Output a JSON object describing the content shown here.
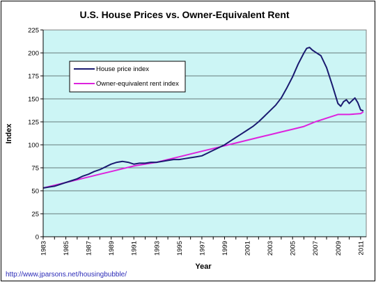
{
  "chart_data": {
    "type": "line",
    "title": "U.S. House Prices vs. Owner-Equivalent Rent",
    "xlabel": "Year",
    "ylabel": "Index",
    "xlim": [
      1983,
      2011.5
    ],
    "ylim": [
      0,
      225
    ],
    "yticks": [
      0,
      25,
      50,
      75,
      100,
      125,
      150,
      175,
      200,
      225
    ],
    "xticks": [
      1983,
      1985,
      1987,
      1989,
      1991,
      1993,
      1995,
      1997,
      1999,
      2001,
      2003,
      2005,
      2007,
      2009,
      2011
    ],
    "xtick_labels": [
      "1983",
      "1985",
      "1987",
      "1989",
      "1991",
      "1993",
      "1995",
      "1997",
      "1999",
      "2001",
      "2003",
      "2005",
      "2007",
      "2009",
      "2011"
    ],
    "ytick_labels": [
      "0",
      "25",
      "50",
      "75",
      "100",
      "125",
      "150",
      "175",
      "200",
      "225"
    ],
    "grid": true,
    "legend_position": "top-left",
    "background": "#ccf5f5",
    "series": [
      {
        "name": "House price index",
        "color": "#1a1a70",
        "x": [
          1983,
          1983.5,
          1984,
          1984.5,
          1985,
          1985.5,
          1986,
          1986.5,
          1987,
          1987.5,
          1988,
          1988.5,
          1989,
          1989.5,
          1990,
          1990.5,
          1991,
          1991.5,
          1992,
          1992.5,
          1993,
          1993.5,
          1994,
          1994.5,
          1995,
          1995.5,
          1996,
          1996.5,
          1997,
          1997.5,
          1998,
          1998.5,
          1999,
          1999.5,
          2000,
          2000.5,
          2001,
          2001.5,
          2002,
          2002.5,
          2003,
          2003.5,
          2004,
          2004.5,
          2005,
          2005.5,
          2006,
          2006.25,
          2006.5,
          2006.75,
          2007,
          2007.5,
          2008,
          2008.5,
          2009,
          2009.25,
          2009.5,
          2009.75,
          2010,
          2010.25,
          2010.5,
          2010.75,
          2011,
          2011.25
        ],
        "values": [
          53,
          54,
          55,
          57,
          59,
          61,
          63,
          66,
          68,
          71,
          73,
          76,
          79,
          81,
          82,
          81,
          79,
          80,
          80,
          81,
          81,
          82,
          83,
          84,
          84,
          85,
          86,
          87,
          88,
          91,
          94,
          97,
          100,
          104,
          108,
          112,
          116,
          120,
          125,
          131,
          137,
          143,
          151,
          162,
          174,
          188,
          200,
          205,
          206,
          203,
          201,
          197,
          184,
          165,
          145,
          142,
          147,
          149,
          145,
          148,
          151,
          146,
          138,
          137
        ]
      },
      {
        "name": "Owner-equivalent rent index",
        "color": "#dd22dd",
        "x": [
          1983,
          1984,
          1985,
          1986,
          1987,
          1988,
          1989,
          1990,
          1991,
          1992,
          1993,
          1994,
          1995,
          1996,
          1997,
          1998,
          1999,
          2000,
          2001,
          2002,
          2003,
          2004,
          2005,
          2006,
          2007,
          2008,
          2009,
          2010,
          2011,
          2011.25
        ],
        "values": [
          53,
          56,
          59,
          62,
          65,
          68,
          71,
          74,
          77,
          79,
          81,
          84,
          87,
          90,
          93,
          96,
          99,
          102,
          105,
          108,
          111,
          114,
          117,
          120,
          125,
          129,
          133,
          133,
          134,
          136
        ]
      }
    ]
  },
  "source_text": "http://www.jparsons.net/housingbubble/"
}
